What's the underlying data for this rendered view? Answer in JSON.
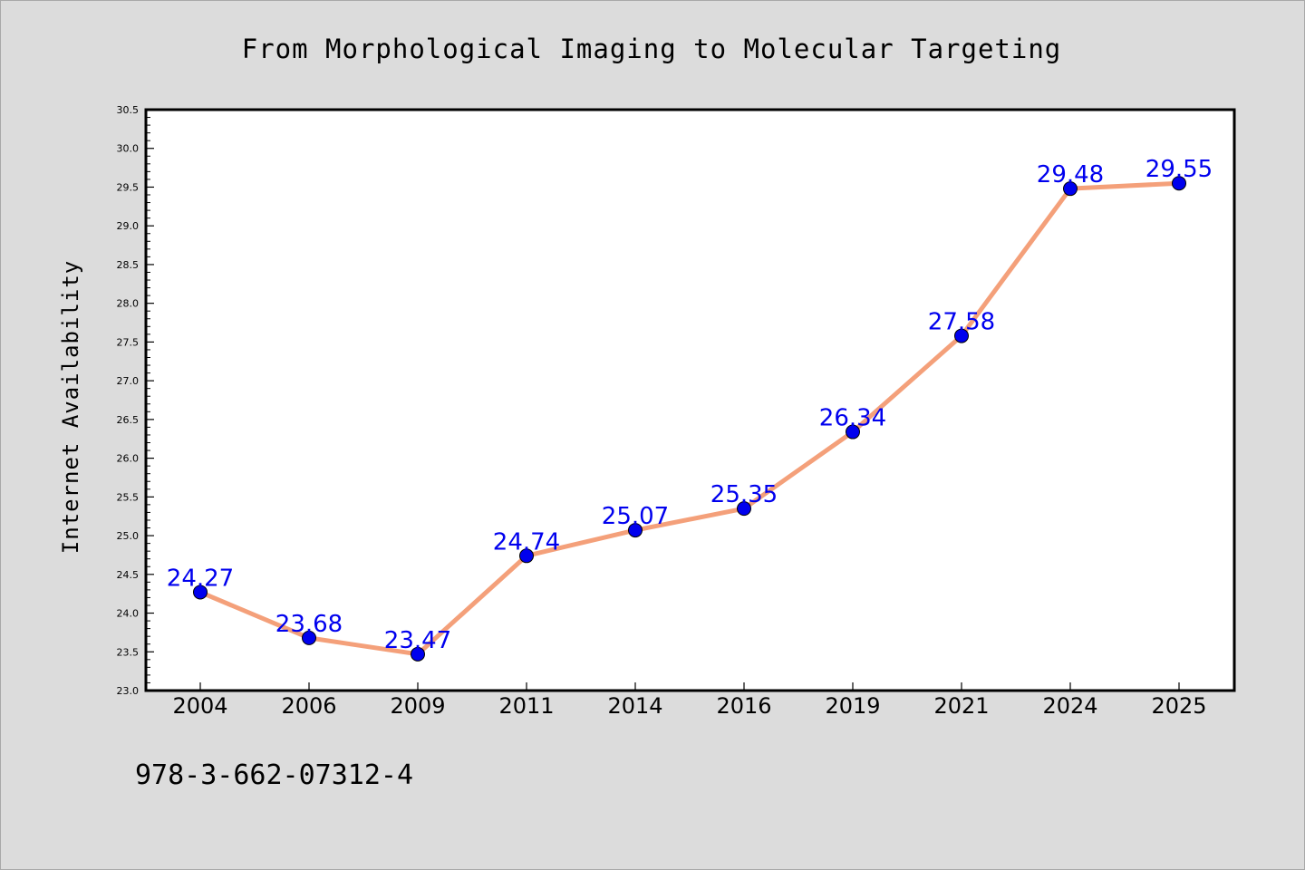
{
  "chart_data": {
    "type": "line",
    "title": "From Morphological Imaging to Molecular Targeting",
    "xlabel": "",
    "ylabel": "Internet Availability",
    "categories": [
      "2004",
      "2006",
      "2009",
      "2011",
      "2014",
      "2016",
      "2019",
      "2021",
      "2024",
      "2025"
    ],
    "series": [
      {
        "values": [
          24.27,
          23.68,
          23.47,
          24.74,
          25.07,
          25.35,
          26.34,
          27.58,
          29.48,
          29.55
        ],
        "line_color": "#f4a07a",
        "marker_color": "#0000ee",
        "label_color": "#0000ee"
      }
    ],
    "ylim": [
      23.0,
      30.5
    ],
    "yticks": [
      "23.0",
      "23.5",
      "24.0",
      "24.5",
      "25.0",
      "25.5",
      "26.0",
      "26.5",
      "27.0",
      "27.5",
      "28.0",
      "28.5",
      "29.0",
      "29.5",
      "30.0",
      "30.5"
    ],
    "grid": false,
    "data_labels": true
  },
  "footer_text": "978-3-662-07312-4",
  "colors": {
    "background": "#dcdcdc",
    "plot_background": "#ffffff"
  }
}
